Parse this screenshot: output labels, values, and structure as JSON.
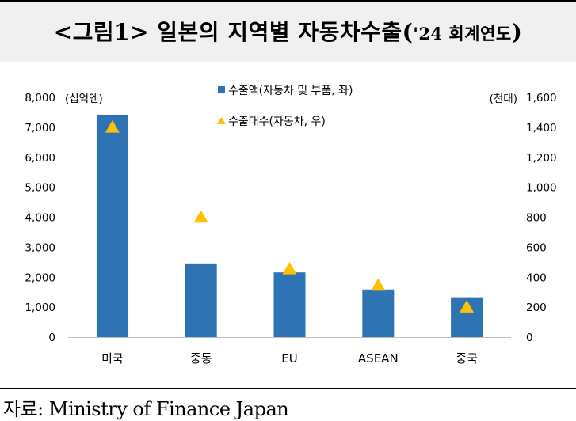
{
  "title_main": "<그림1> 일본의 지역별 자동차수출(",
  "title_small": "'24 회계연도",
  "title_close": ")",
  "source": "자료: Ministry of Finance Japan",
  "colors": {
    "bar": "#2e74b5",
    "marker": "#ffc000",
    "title_bg": "#f0f0f0"
  },
  "chart_data": {
    "type": "bar",
    "categories": [
      "미국",
      "중동",
      "EU",
      "ASEAN",
      "중국"
    ],
    "series": [
      {
        "name": "수출액(자동차 및 부품, 좌)",
        "type": "bar",
        "axis": "left",
        "values": [
          7420,
          2460,
          2160,
          1590,
          1330
        ]
      },
      {
        "name": "수출대수(자동차, 우)",
        "type": "scatter",
        "marker": "triangle",
        "axis": "right",
        "values": [
          1400,
          800,
          455,
          345,
          200
        ]
      }
    ],
    "y_left": {
      "unit_label": "(십억엔)",
      "ylim": [
        0,
        8000
      ],
      "ticks": [
        "0",
        "1,000",
        "2,000",
        "3,000",
        "4,000",
        "5,000",
        "6,000",
        "7,000",
        "8,000"
      ]
    },
    "y_right": {
      "unit_label": "(천대)",
      "ylim": [
        0,
        1600
      ],
      "ticks": [
        "0",
        "200",
        "400",
        "600",
        "800",
        "1,000",
        "1,200",
        "1,400",
        "1,600"
      ]
    },
    "grid": false,
    "legend_position": "top-center"
  }
}
